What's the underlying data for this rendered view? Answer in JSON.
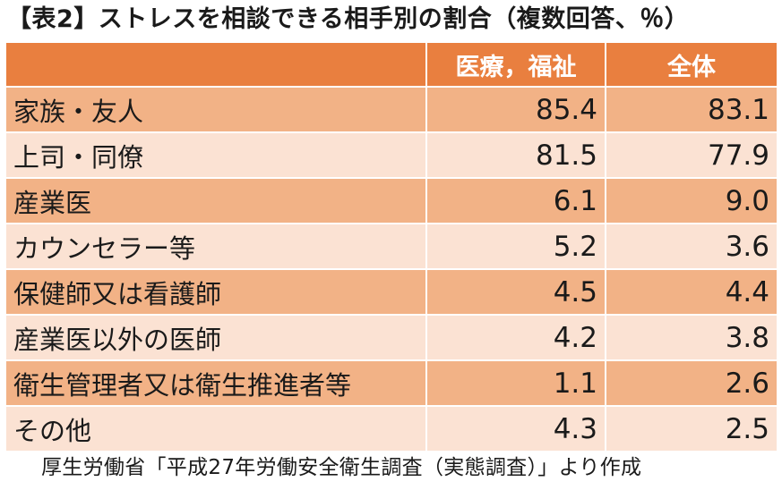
{
  "title": "【表2】ストレスを相談できる相手別の割合（複数回答、％）",
  "chart_data": {
    "type": "table",
    "columns": [
      "",
      "医療，福祉",
      "全体"
    ],
    "rows": [
      {
        "label": "家族・友人",
        "values": [
          "85.4",
          "83.1"
        ]
      },
      {
        "label": "上司・同僚",
        "values": [
          "81.5",
          "77.9"
        ]
      },
      {
        "label": "産業医",
        "values": [
          "6.1",
          "9.0"
        ]
      },
      {
        "label": "カウンセラー等",
        "values": [
          "5.2",
          "3.6"
        ]
      },
      {
        "label": "保健師又は看護師",
        "values": [
          "4.5",
          "4.4"
        ]
      },
      {
        "label": "産業医以外の医師",
        "values": [
          "4.2",
          "3.8"
        ]
      },
      {
        "label": "衛生管理者又は衛生推進者等",
        "values": [
          "1.1",
          "2.6"
        ]
      },
      {
        "label": "その他",
        "values": [
          "4.3",
          "2.5"
        ]
      }
    ]
  },
  "source": "厚生労働省「平成27年労働安全衛生調査（実態調査）」より作成",
  "colors": {
    "header": "#e97f3f",
    "row_dark": "#f2b286",
    "row_light": "#fbe2d3"
  }
}
